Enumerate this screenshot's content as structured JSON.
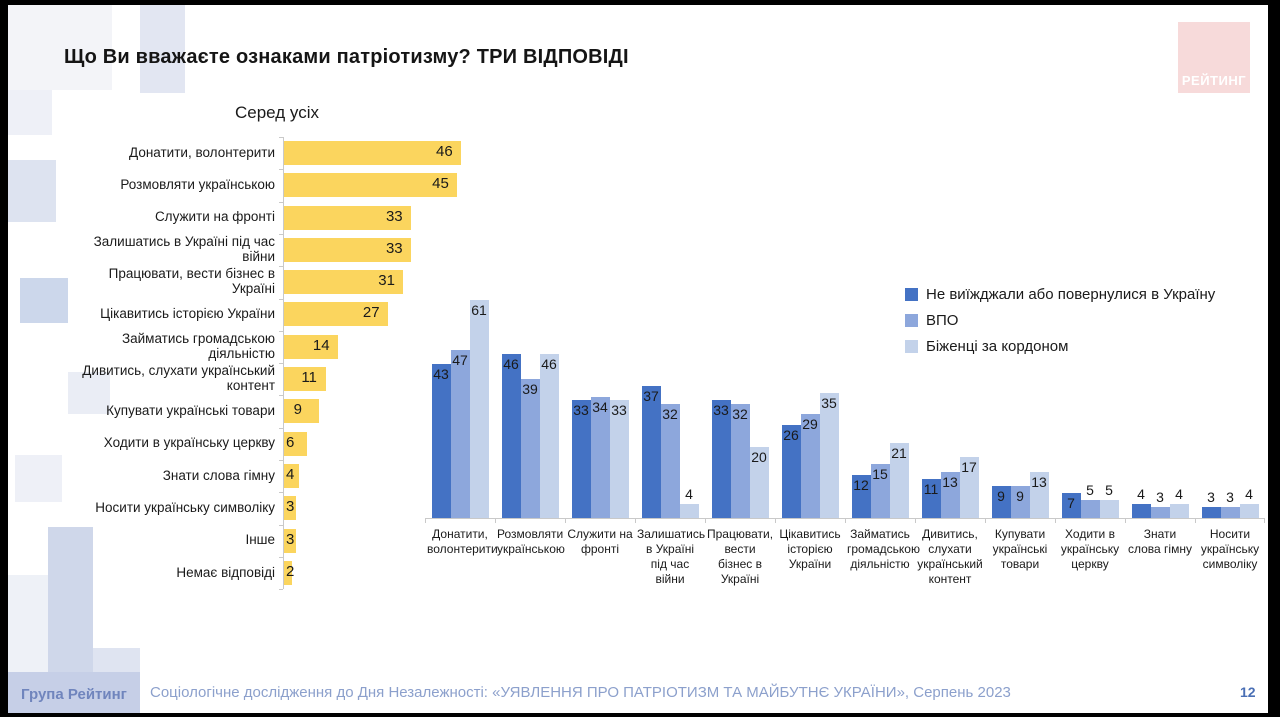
{
  "title": "Що Ви вважаєте ознаками патріотизму? ТРИ ВІДПОВІДІ",
  "logo": {
    "text": "РЕЙТИНГ"
  },
  "legend": {
    "items": [
      "Не виїжджали або повернулися в Україну",
      "ВПО",
      "Біженці за кордоном"
    ]
  },
  "colors": {
    "left_bar": "#FBD55E",
    "series1": "#4472C4",
    "series2": "#8DA7DC",
    "series3": "#C3D2EA",
    "axis": "#c9c9c9"
  },
  "footer": {
    "brand": "Група Рейтинг",
    "source": "Соціологічне дослідження до Дня Незалежності: «УЯВЛЕННЯ ПРО ПАТРІОТИЗМ ТА МАЙБУТНЄ УКРАЇНИ», Серпень 2023",
    "page_number": "12"
  },
  "chart_data": [
    {
      "type": "bar",
      "orientation": "horizontal",
      "title": "Серед усіх",
      "categories": [
        "Донатити, волонтерити",
        "Розмовляти українською",
        "Служити на фронті",
        "Залишатись в Україні під час війни",
        "Працювати, вести бізнес в Україні",
        "Цікавитись історією України",
        "Займатись громадською діяльністю",
        "Дивитись, слухати український контент",
        "Купувати українські товари",
        "Ходити в українську церкву",
        "Знати слова гімну",
        "Носити українську символіку",
        "Інше",
        "Немає відповіді"
      ],
      "values": [
        46,
        45,
        33,
        33,
        31,
        27,
        14,
        11,
        9,
        6,
        4,
        3,
        3,
        2
      ],
      "xlim": [
        0,
        46
      ],
      "bar_color": "#FBD55E",
      "grid": false,
      "data_labels": true
    },
    {
      "type": "bar",
      "orientation": "vertical",
      "categories": [
        "Донатити, волонтерити",
        "Розмовляти українською",
        "Служити на фронті",
        "Залишатись в Україні під час війни",
        "Працювати, вести бізнес в Україні",
        "Цікавитись історією України",
        "Займатись громадською діяльністю",
        "Дивитись, слухати український контент",
        "Купувати українські товари",
        "Ходити в українську церкву",
        "Знати слова гімну",
        "Носити українську символіку"
      ],
      "series": [
        {
          "name": "Не виїжджали або повернулися в Україну",
          "color": "#4472C4",
          "values": [
            43,
            46,
            33,
            37,
            33,
            26,
            12,
            11,
            9,
            7,
            4,
            3
          ]
        },
        {
          "name": "ВПО",
          "color": "#8DA7DC",
          "values": [
            47,
            39,
            34,
            32,
            32,
            29,
            15,
            13,
            9,
            5,
            3,
            3
          ]
        },
        {
          "name": "Біженці за кордоном",
          "color": "#C3D2EA",
          "values": [
            61,
            46,
            33,
            4,
            20,
            35,
            21,
            17,
            13,
            5,
            4,
            4
          ]
        }
      ],
      "ylim": [
        0,
        65
      ],
      "legend_position": "top-right",
      "grid": false,
      "data_labels": true
    }
  ]
}
